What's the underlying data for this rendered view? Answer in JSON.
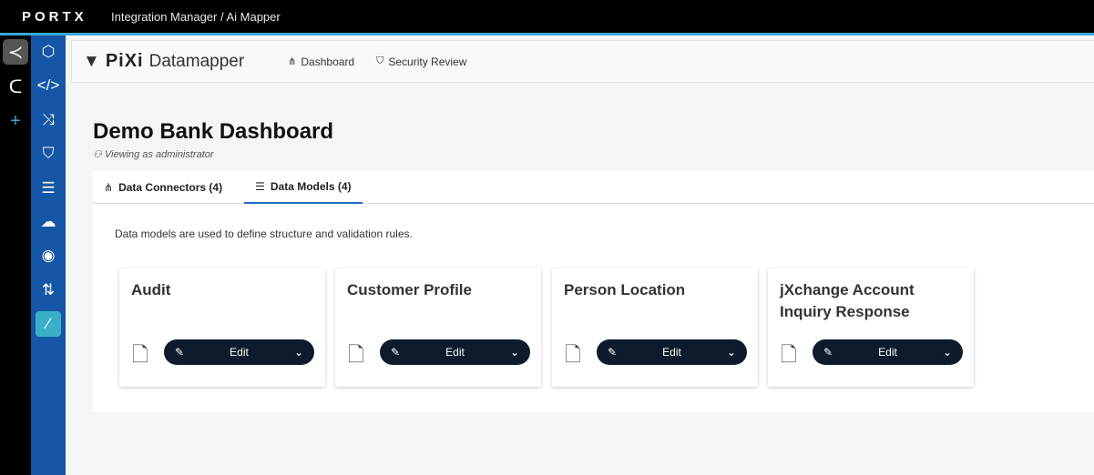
{
  "topbar": {
    "logo": "PORTX",
    "breadcrumb": "Integration Manager / Ai Mapper"
  },
  "rail": {
    "icons": [
      "portx-app-icon",
      "connect-app-icon",
      "plus-icon"
    ]
  },
  "sidebar": {
    "items": [
      "settings-hex-icon",
      "code-icon",
      "shuffle-icon",
      "shield-check-icon",
      "list-icon",
      "cloud-upload-icon",
      "eye-icon",
      "pull-request-icon",
      "magic-wand-icon"
    ],
    "active": "magic-wand-icon"
  },
  "header": {
    "brand": "PiXi",
    "product": "Datamapper",
    "nav": [
      {
        "label": "Dashboard",
        "icon": "hierarchy-icon"
      },
      {
        "label": "Security Review",
        "icon": "shield-icon"
      }
    ]
  },
  "page": {
    "title": "Demo Bank Dashboard",
    "subtitle": "Viewing as administrator"
  },
  "tabs": [
    {
      "label": "Data Connectors (4)",
      "active": false
    },
    {
      "label": "Data Models (4)",
      "active": true
    }
  ],
  "description": "Data models are used to define structure and validation rules.",
  "cards": [
    {
      "title": "Audit",
      "button": "Edit"
    },
    {
      "title": "Customer Profile",
      "button": "Edit"
    },
    {
      "title": "Person Location",
      "button": "Edit"
    },
    {
      "title": "jXchange Account Inquiry Response",
      "button": "Edit"
    }
  ]
}
